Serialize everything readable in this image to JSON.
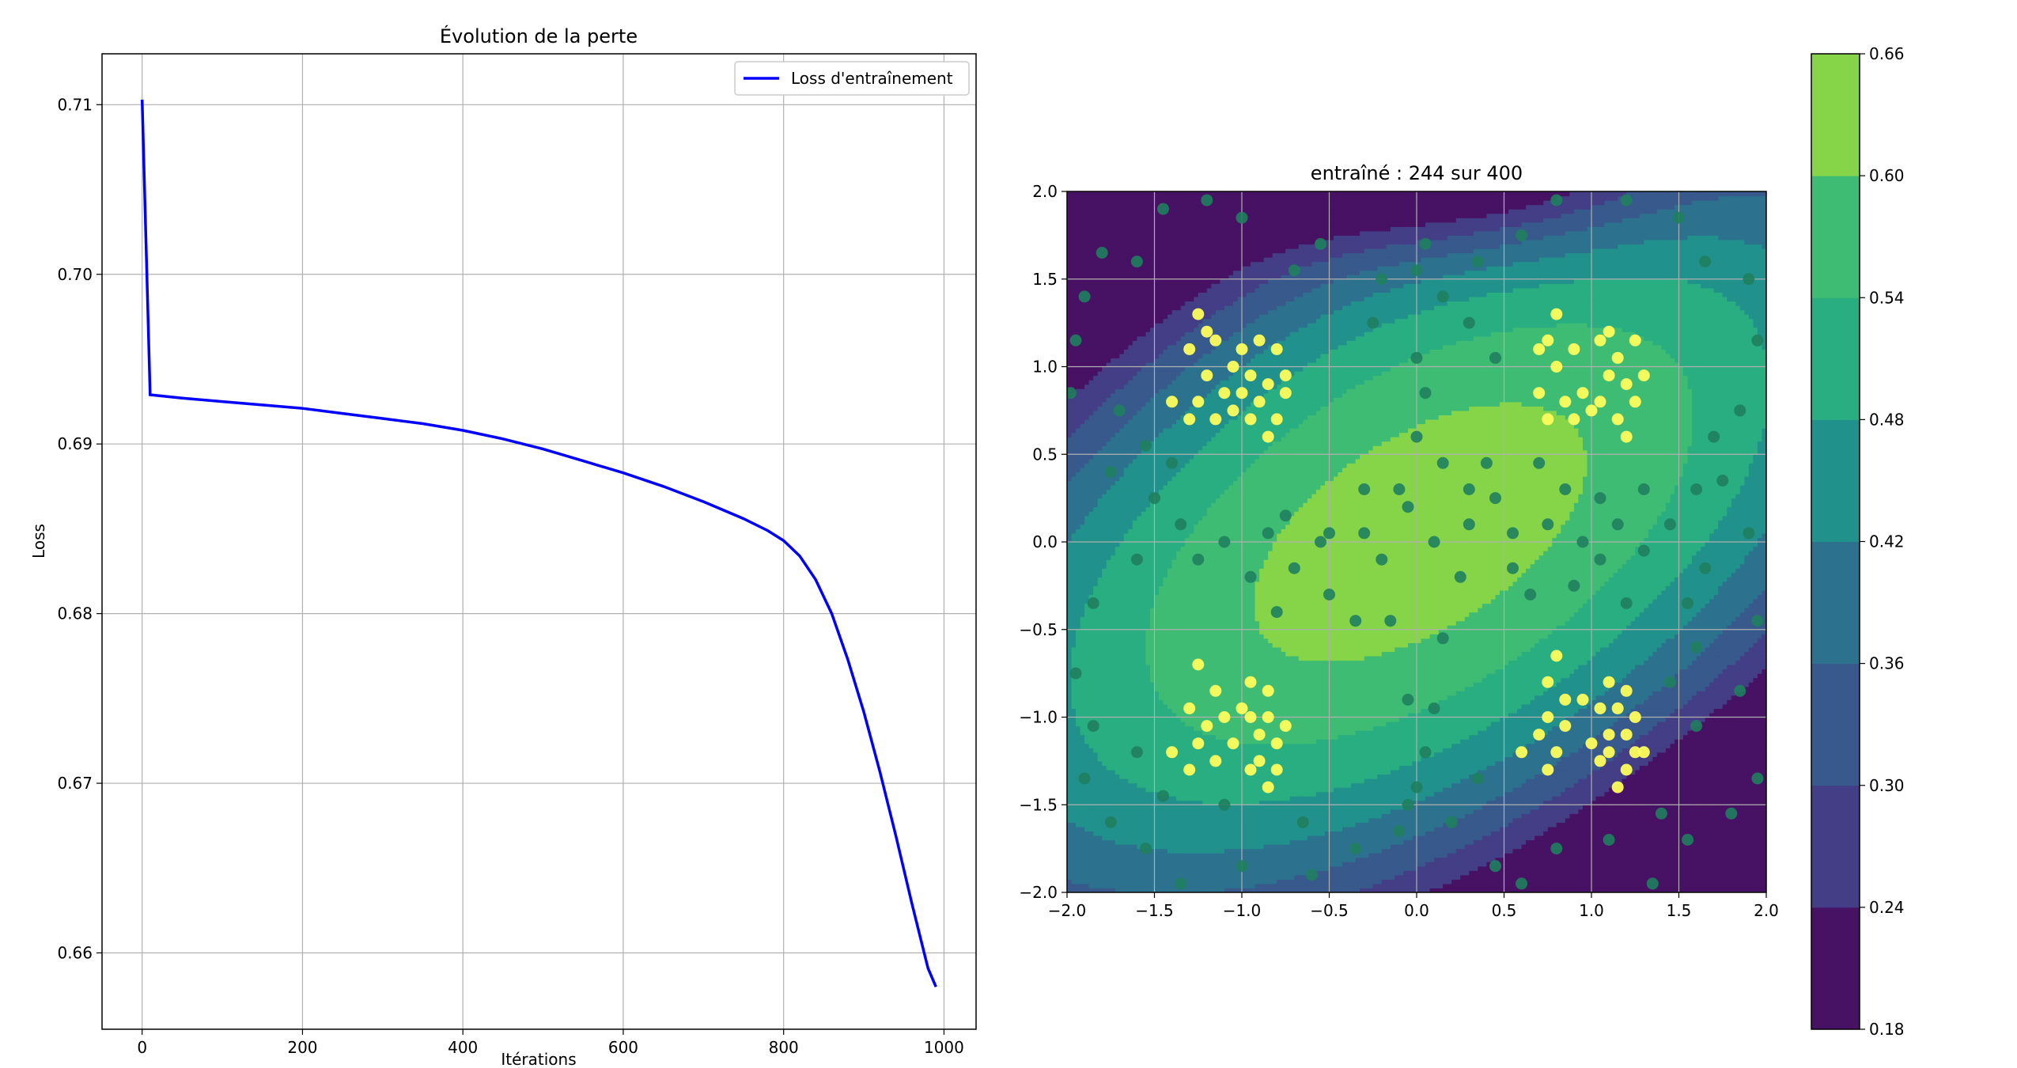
{
  "chart_data": [
    {
      "type": "line",
      "title": "Évolution de la perte",
      "xlabel": "Itérations",
      "ylabel": "Loss",
      "xlim": [
        -50,
        1040
      ],
      "ylim": [
        0.6555,
        0.713
      ],
      "xticks": [
        0,
        200,
        400,
        600,
        800,
        1000
      ],
      "yticks": [
        0.66,
        0.67,
        0.68,
        0.69,
        0.7,
        0.71
      ],
      "xtick_labels": [
        "0",
        "200",
        "400",
        "600",
        "800",
        "1000"
      ],
      "ytick_labels": [
        "0.66",
        "0.67",
        "0.68",
        "0.69",
        "0.70",
        "0.71"
      ],
      "grid": true,
      "legend_position": "top-right",
      "series": [
        {
          "name": "Loss d'entraînement",
          "color": "#0000ff",
          "x": [
            0,
            10,
            50,
            100,
            150,
            200,
            250,
            300,
            350,
            400,
            450,
            500,
            550,
            600,
            650,
            700,
            750,
            780,
            800,
            820,
            840,
            860,
            880,
            900,
            920,
            940,
            960,
            980,
            990
          ],
          "y": [
            0.7103,
            0.6929,
            0.6927,
            0.6925,
            0.6923,
            0.6921,
            0.6918,
            0.6915,
            0.6912,
            0.6908,
            0.6903,
            0.6897,
            0.689,
            0.6883,
            0.6875,
            0.6866,
            0.6856,
            0.6849,
            0.6843,
            0.6834,
            0.682,
            0.68,
            0.6773,
            0.6742,
            0.6707,
            0.6669,
            0.6629,
            0.6591,
            0.658
          ]
        }
      ]
    },
    {
      "type": "contour-scatter",
      "title": "entraîné : 244 sur 400",
      "xlim": [
        -2.0,
        2.0
      ],
      "ylim": [
        -2.0,
        2.0
      ],
      "xticks": [
        -2.0,
        -1.5,
        -1.0,
        -0.5,
        0.0,
        0.5,
        1.0,
        1.5,
        2.0
      ],
      "yticks": [
        -2.0,
        -1.5,
        -1.0,
        -0.5,
        0.0,
        0.5,
        1.0,
        1.5,
        2.0
      ],
      "xtick_labels": [
        "−2.0",
        "−1.5",
        "−1.0",
        "−0.5",
        "0.0",
        "0.5",
        "1.0",
        "1.5",
        "2.0"
      ],
      "ytick_labels": [
        "−2.0",
        "−1.5",
        "−1.0",
        "−0.5",
        "0.0",
        "0.5",
        "1.0",
        "1.5",
        "2.0"
      ],
      "grid": true,
      "colorbar": {
        "levels": [
          0.18,
          0.24,
          0.3,
          0.36,
          0.42,
          0.48,
          0.54,
          0.6,
          0.66
        ],
        "labels": [
          "0.18",
          "0.24",
          "0.30",
          "0.36",
          "0.42",
          "0.48",
          "0.54",
          "0.60",
          "0.66"
        ],
        "colors": [
          "#471164",
          "#433e85",
          "#38598c",
          "#2c728e",
          "#21918c",
          "#28ae80",
          "#3fbc73",
          "#86d549",
          "#d2e21b"
        ]
      },
      "point_colors": {
        "class_0": "#1f7f5e",
        "class_1": "#fdfd5c"
      },
      "points_class_0": [
        [
          -1.8,
          1.65
        ],
        [
          -1.6,
          1.6
        ],
        [
          -1.45,
          1.9
        ],
        [
          -1.2,
          1.95
        ],
        [
          -1.0,
          1.85
        ],
        [
          -0.7,
          1.55
        ],
        [
          -0.55,
          1.7
        ],
        [
          -0.2,
          1.5
        ],
        [
          0.0,
          1.55
        ],
        [
          0.15,
          1.4
        ],
        [
          0.35,
          1.6
        ],
        [
          0.6,
          1.75
        ],
        [
          0.8,
          1.95
        ],
        [
          1.2,
          1.95
        ],
        [
          1.5,
          1.85
        ],
        [
          1.65,
          1.6
        ],
        [
          1.9,
          1.5
        ],
        [
          1.95,
          1.15
        ],
        [
          -1.9,
          1.4
        ],
        [
          -1.95,
          1.15
        ],
        [
          -1.98,
          0.85
        ],
        [
          -1.75,
          0.4
        ],
        [
          -1.5,
          0.25
        ],
        [
          -1.35,
          0.1
        ],
        [
          -1.1,
          0.0
        ],
        [
          -0.95,
          -0.2
        ],
        [
          -0.75,
          0.15
        ],
        [
          -0.5,
          0.05
        ],
        [
          -0.3,
          0.3
        ],
        [
          -0.1,
          0.3
        ],
        [
          0.0,
          0.6
        ],
        [
          0.05,
          0.85
        ],
        [
          0.15,
          0.45
        ],
        [
          0.3,
          0.3
        ],
        [
          0.45,
          0.25
        ],
        [
          0.55,
          0.05
        ],
        [
          0.75,
          0.1
        ],
        [
          0.95,
          0.0
        ],
        [
          1.15,
          0.1
        ],
        [
          1.3,
          -0.05
        ],
        [
          1.45,
          0.1
        ],
        [
          1.6,
          0.3
        ],
        [
          1.75,
          0.35
        ],
        [
          1.9,
          0.05
        ],
        [
          1.95,
          -0.45
        ],
        [
          1.85,
          -0.85
        ],
        [
          1.95,
          -1.35
        ],
        [
          1.8,
          -1.55
        ],
        [
          1.55,
          -1.7
        ],
        [
          1.35,
          -1.95
        ],
        [
          -1.85,
          -0.35
        ],
        [
          -1.95,
          -0.75
        ],
        [
          -1.85,
          -1.05
        ],
        [
          -1.9,
          -1.35
        ],
        [
          -1.75,
          -1.6
        ],
        [
          -1.55,
          -1.75
        ],
        [
          -1.35,
          -1.95
        ],
        [
          -1.0,
          -1.85
        ],
        [
          -0.6,
          -1.9
        ],
        [
          -0.35,
          -1.75
        ],
        [
          -0.1,
          -1.65
        ],
        [
          0.0,
          -1.4
        ],
        [
          0.05,
          -1.2
        ],
        [
          0.1,
          -0.95
        ],
        [
          0.2,
          -1.6
        ],
        [
          0.45,
          -1.85
        ],
        [
          0.6,
          -1.95
        ],
        [
          -0.05,
          -0.9
        ],
        [
          0.15,
          -0.55
        ],
        [
          0.25,
          -0.2
        ],
        [
          -0.15,
          -0.45
        ],
        [
          -0.35,
          -0.45
        ],
        [
          -0.55,
          0.0
        ],
        [
          0.65,
          -0.3
        ],
        [
          0.9,
          -0.25
        ],
        [
          1.2,
          -0.35
        ],
        [
          1.55,
          -0.35
        ],
        [
          1.65,
          -0.15
        ],
        [
          1.05,
          -0.1
        ],
        [
          -0.85,
          0.05
        ],
        [
          -1.25,
          -0.1
        ],
        [
          -1.4,
          0.45
        ],
        [
          -1.6,
          -0.1
        ],
        [
          -0.7,
          -0.15
        ],
        [
          -0.3,
          0.05
        ],
        [
          0.0,
          1.05
        ],
        [
          0.3,
          1.25
        ],
        [
          0.45,
          1.05
        ],
        [
          -0.25,
          1.25
        ],
        [
          0.05,
          1.7
        ],
        [
          -1.7,
          0.75
        ],
        [
          -1.55,
          0.55
        ],
        [
          1.7,
          0.6
        ],
        [
          1.85,
          0.75
        ],
        [
          1.6,
          -0.6
        ],
        [
          1.45,
          -0.8
        ],
        [
          1.6,
          -1.05
        ],
        [
          -1.6,
          -1.2
        ],
        [
          -1.45,
          -1.45
        ],
        [
          -1.1,
          -1.5
        ],
        [
          0.35,
          -1.35
        ],
        [
          -0.05,
          -1.5
        ],
        [
          -0.65,
          -1.6
        ],
        [
          0.8,
          -1.75
        ],
        [
          1.1,
          -1.7
        ],
        [
          1.4,
          -1.55
        ],
        [
          0.55,
          -0.15
        ],
        [
          -0.8,
          -0.4
        ],
        [
          0.3,
          0.1
        ],
        [
          -0.5,
          -0.3
        ],
        [
          0.1,
          0.0
        ],
        [
          -0.2,
          -0.1
        ],
        [
          0.7,
          0.45
        ],
        [
          0.85,
          0.3
        ],
        [
          1.05,
          0.25
        ],
        [
          1.3,
          0.3
        ],
        [
          -0.05,
          0.2
        ],
        [
          0.4,
          0.45
        ]
      ],
      "points_class_1": [
        [
          -1.25,
          1.3
        ],
        [
          -1.15,
          1.15
        ],
        [
          -1.3,
          1.1
        ],
        [
          -1.2,
          0.95
        ],
        [
          -1.05,
          1.0
        ],
        [
          -1.25,
          0.8
        ],
        [
          -1.1,
          0.85
        ],
        [
          -1.3,
          0.7
        ],
        [
          -1.15,
          0.7
        ],
        [
          -1.4,
          0.8
        ],
        [
          -1.05,
          0.75
        ],
        [
          -1.2,
          1.2
        ],
        [
          -1.0,
          1.1
        ],
        [
          -0.9,
          1.15
        ],
        [
          -0.8,
          1.1
        ],
        [
          -0.95,
          0.95
        ],
        [
          -0.85,
          0.9
        ],
        [
          -0.75,
          0.85
        ],
        [
          -0.9,
          0.8
        ],
        [
          -0.8,
          0.7
        ],
        [
          -0.95,
          0.7
        ],
        [
          -0.85,
          0.6
        ],
        [
          -0.75,
          0.95
        ],
        [
          -1.0,
          0.85
        ],
        [
          0.8,
          1.3
        ],
        [
          0.75,
          1.15
        ],
        [
          0.9,
          1.1
        ],
        [
          0.8,
          1.0
        ],
        [
          0.7,
          0.85
        ],
        [
          0.85,
          0.8
        ],
        [
          0.95,
          0.85
        ],
        [
          0.75,
          0.7
        ],
        [
          0.9,
          0.7
        ],
        [
          1.0,
          0.75
        ],
        [
          1.05,
          1.15
        ],
        [
          1.15,
          1.05
        ],
        [
          1.25,
          1.15
        ],
        [
          1.1,
          0.95
        ],
        [
          1.2,
          0.9
        ],
        [
          1.3,
          0.95
        ],
        [
          1.05,
          0.8
        ],
        [
          1.15,
          0.7
        ],
        [
          1.25,
          0.8
        ],
        [
          1.2,
          0.6
        ],
        [
          1.1,
          1.2
        ],
        [
          0.7,
          1.1
        ],
        [
          -1.25,
          -0.7
        ],
        [
          -1.15,
          -0.85
        ],
        [
          -1.3,
          -0.95
        ],
        [
          -1.2,
          -1.05
        ],
        [
          -1.1,
          -1.0
        ],
        [
          -1.25,
          -1.15
        ],
        [
          -1.15,
          -1.25
        ],
        [
          -1.3,
          -1.3
        ],
        [
          -1.4,
          -1.2
        ],
        [
          -1.05,
          -1.15
        ],
        [
          -0.95,
          -0.8
        ],
        [
          -0.85,
          -0.85
        ],
        [
          -0.95,
          -1.0
        ],
        [
          -0.85,
          -1.0
        ],
        [
          -0.75,
          -1.05
        ],
        [
          -0.9,
          -1.1
        ],
        [
          -0.8,
          -1.15
        ],
        [
          -0.9,
          -1.25
        ],
        [
          -0.8,
          -1.3
        ],
        [
          -0.85,
          -1.4
        ],
        [
          -0.95,
          -1.3
        ],
        [
          -1.0,
          -0.95
        ],
        [
          0.8,
          -0.65
        ],
        [
          0.75,
          -0.8
        ],
        [
          0.85,
          -0.9
        ],
        [
          0.75,
          -1.0
        ],
        [
          0.85,
          -1.05
        ],
        [
          0.7,
          -1.1
        ],
        [
          0.8,
          -1.2
        ],
        [
          0.75,
          -1.3
        ],
        [
          0.6,
          -1.2
        ],
        [
          0.95,
          -0.9
        ],
        [
          1.1,
          -0.8
        ],
        [
          1.2,
          -0.85
        ],
        [
          1.05,
          -0.95
        ],
        [
          1.15,
          -0.95
        ],
        [
          1.25,
          -1.0
        ],
        [
          1.1,
          -1.1
        ],
        [
          1.2,
          -1.1
        ],
        [
          1.0,
          -1.15
        ],
        [
          1.1,
          -1.2
        ],
        [
          1.25,
          -1.2
        ],
        [
          1.2,
          -1.3
        ],
        [
          1.15,
          -1.4
        ],
        [
          1.05,
          -1.25
        ],
        [
          1.3,
          -1.2
        ]
      ]
    }
  ]
}
